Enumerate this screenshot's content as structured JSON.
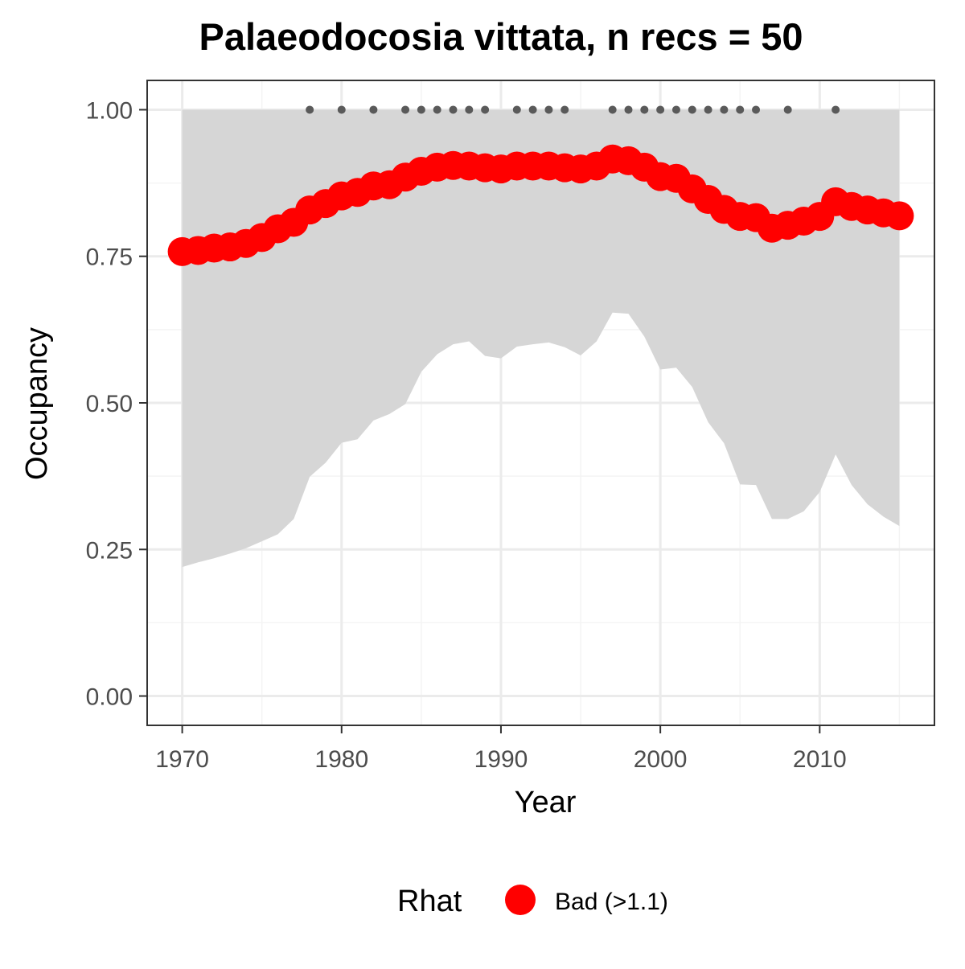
{
  "chart_data": {
    "type": "line",
    "title": "Palaeodocosia vittata, n recs = 50",
    "xlabel": "Year",
    "ylabel": "Occupancy",
    "xlim": [
      1967.8,
      2017.2
    ],
    "ylim": [
      -0.05,
      1.05
    ],
    "x_ticks": [
      1970,
      1980,
      1990,
      2000,
      2010
    ],
    "x_tick_labels": [
      "1970",
      "1980",
      "1990",
      "2000",
      "2010"
    ],
    "y_ticks": [
      0.0,
      0.25,
      0.5,
      0.75,
      1.0
    ],
    "y_tick_labels": [
      "0.00",
      "0.25",
      "0.50",
      "0.75",
      "1.00"
    ],
    "grid": true,
    "x": [
      1970,
      1971,
      1972,
      1973,
      1974,
      1975,
      1976,
      1977,
      1978,
      1979,
      1980,
      1981,
      1982,
      1983,
      1984,
      1985,
      1986,
      1987,
      1988,
      1989,
      1990,
      1991,
      1992,
      1993,
      1994,
      1995,
      1996,
      1997,
      1998,
      1999,
      2000,
      2001,
      2002,
      2003,
      2004,
      2005,
      2006,
      2007,
      2008,
      2009,
      2010,
      2011,
      2012,
      2013,
      2014,
      2015
    ],
    "series": [
      {
        "values": [
          0.758,
          0.76,
          0.764,
          0.766,
          0.772,
          0.782,
          0.797,
          0.808,
          0.829,
          0.84,
          0.853,
          0.859,
          0.87,
          0.872,
          0.885,
          0.895,
          0.902,
          0.905,
          0.904,
          0.901,
          0.899,
          0.904,
          0.904,
          0.904,
          0.901,
          0.899,
          0.904,
          0.916,
          0.913,
          0.902,
          0.886,
          0.883,
          0.865,
          0.847,
          0.83,
          0.818,
          0.816,
          0.798,
          0.803,
          0.81,
          0.818,
          0.843,
          0.835,
          0.829,
          0.824,
          0.819
        ],
        "color": "#ff0000",
        "lower": [
          0.22,
          0.228,
          0.235,
          0.243,
          0.252,
          0.264,
          0.276,
          0.302,
          0.374,
          0.398,
          0.432,
          0.438,
          0.47,
          0.481,
          0.498,
          0.553,
          0.583,
          0.6,
          0.605,
          0.58,
          0.576,
          0.596,
          0.6,
          0.603,
          0.595,
          0.581,
          0.605,
          0.654,
          0.652,
          0.613,
          0.557,
          0.56,
          0.527,
          0.467,
          0.431,
          0.361,
          0.36,
          0.302,
          0.302,
          0.315,
          0.348,
          0.412,
          0.36,
          0.327,
          0.306,
          0.29
        ],
        "upper": [
          1.0,
          1.0,
          1.0,
          1.0,
          1.0,
          1.0,
          1.0,
          1.0,
          1.0,
          1.0,
          1.0,
          1.0,
          1.0,
          1.0,
          1.0,
          1.0,
          1.0,
          1.0,
          1.0,
          1.0,
          1.0,
          1.0,
          1.0,
          1.0,
          1.0,
          1.0,
          1.0,
          1.0,
          1.0,
          1.0,
          1.0,
          1.0,
          1.0,
          1.0,
          1.0,
          1.0,
          1.0,
          1.0,
          1.0,
          1.0,
          1.0,
          1.0,
          1.0,
          1.0,
          1.0,
          1.0
        ]
      }
    ],
    "record_years": [
      1978,
      1980,
      1982,
      1984,
      1985,
      1986,
      1987,
      1988,
      1989,
      1991,
      1992,
      1993,
      1994,
      1997,
      1998,
      1999,
      2000,
      2001,
      2002,
      2003,
      2004,
      2005,
      2006,
      2008,
      2011
    ],
    "record_y": 1.0,
    "colors": {
      "ribbon": "#d6d6d6",
      "line": "#ff0000",
      "record_dots": "#5a5a5a",
      "grid_major": "#ebebeb",
      "grid_minor": "#f4f4f4",
      "panel_border": "#333333"
    },
    "legend": {
      "title": "Rhat",
      "entries": [
        {
          "label": "Bad (>1.1)",
          "color": "#ff0000"
        }
      ],
      "position": "bottom"
    }
  }
}
